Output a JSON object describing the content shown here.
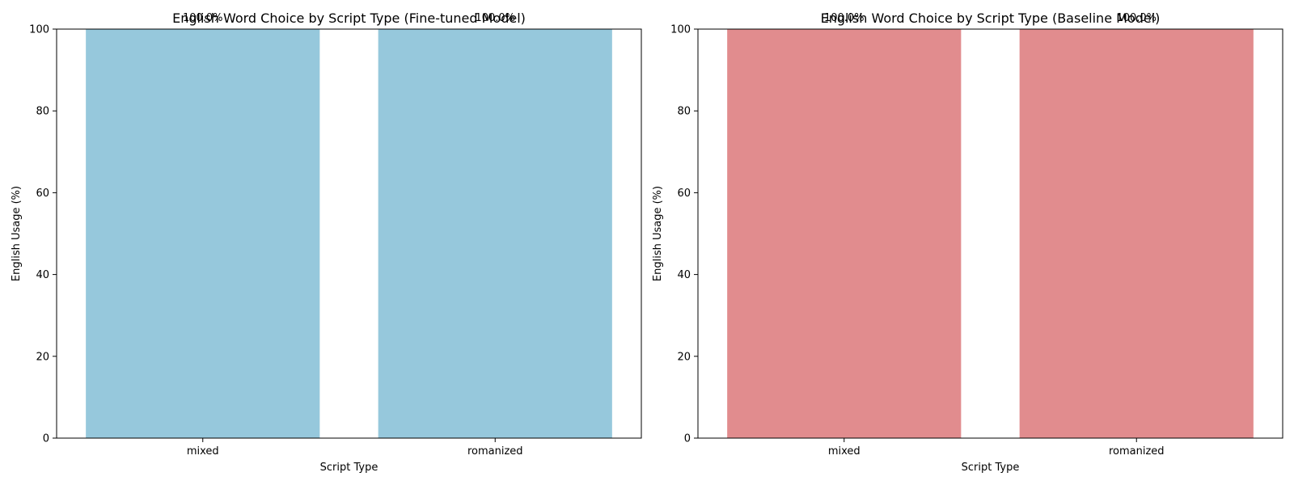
{
  "chart_data": [
    {
      "type": "bar",
      "title": "English Word Choice by Script Type (Fine-tuned Model)",
      "xlabel": "Script Type",
      "ylabel": "English Usage (%)",
      "categories": [
        "mixed",
        "romanized"
      ],
      "values": [
        100.0,
        100.0
      ],
      "value_labels": [
        "100.0%",
        "100.0%"
      ],
      "ylim": [
        0,
        100
      ],
      "yticks": [
        0,
        20,
        40,
        60,
        80,
        100
      ],
      "ytick_labels": [
        "0",
        "20",
        "40",
        "60",
        "80",
        "100"
      ],
      "grid": false,
      "color": "#96c8dc"
    },
    {
      "type": "bar",
      "title": "English Word Choice by Script Type (Baseline Model)",
      "xlabel": "Script Type",
      "ylabel": "English Usage (%)",
      "categories": [
        "mixed",
        "romanized"
      ],
      "values": [
        100.0,
        100.0
      ],
      "value_labels": [
        "100.0%",
        "100.0%"
      ],
      "ylim": [
        0,
        100
      ],
      "yticks": [
        0,
        20,
        40,
        60,
        80,
        100
      ],
      "ytick_labels": [
        "0",
        "20",
        "40",
        "60",
        "80",
        "100"
      ],
      "grid": false,
      "color": "#e18c8e"
    }
  ]
}
